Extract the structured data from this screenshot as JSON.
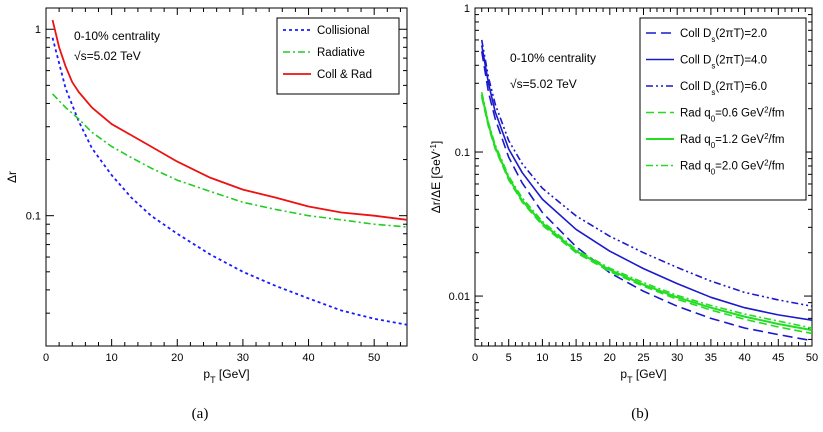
{
  "chart_data": [
    {
      "type": "line",
      "panel_label": "(a)",
      "xlabel_main": "p",
      "xlabel_sub": "T",
      "xlabel_rest": " [GeV]",
      "ylabel": "Δr",
      "xlim": [
        0,
        55
      ],
      "ylim": [
        0.02,
        1.3
      ],
      "yscale": "log",
      "xticks": [
        0,
        10,
        20,
        30,
        40,
        50
      ],
      "yticks": [
        {
          "v": 0.1,
          "label": "0.1"
        },
        {
          "v": 1,
          "label": "1"
        }
      ],
      "annotations": [
        "0-10% centrality",
        "√s=5.02 TeV"
      ],
      "legend_position": "top-right",
      "series": [
        {
          "name": "Collisional",
          "color": "#1a1aff",
          "dash": "3,3",
          "width": 1.8,
          "x": [
            1,
            3,
            5,
            7,
            10,
            13,
            16,
            20,
            25,
            30,
            35,
            40,
            45,
            50,
            55
          ],
          "y": [
            0.9,
            0.48,
            0.32,
            0.23,
            0.165,
            0.125,
            0.1,
            0.08,
            0.062,
            0.05,
            0.042,
            0.036,
            0.031,
            0.028,
            0.026
          ]
        },
        {
          "name": "Radiative",
          "color": "#22cc22",
          "dash": "7,3,2,3",
          "width": 1.6,
          "x": [
            1,
            3,
            5,
            7,
            10,
            13,
            16,
            20,
            25,
            30,
            35,
            40,
            45,
            50,
            55
          ],
          "y": [
            0.45,
            0.38,
            0.33,
            0.28,
            0.235,
            0.205,
            0.18,
            0.155,
            0.135,
            0.118,
            0.108,
            0.1,
            0.095,
            0.09,
            0.087
          ]
        },
        {
          "name": "Coll & Rad",
          "color": "#ee1111",
          "dash": "",
          "width": 1.8,
          "x": [
            1,
            2,
            3,
            4,
            5,
            7,
            10,
            13,
            16,
            20,
            25,
            30,
            35,
            40,
            45,
            50,
            55
          ],
          "y": [
            1.12,
            0.8,
            0.63,
            0.52,
            0.46,
            0.38,
            0.31,
            0.27,
            0.235,
            0.195,
            0.16,
            0.138,
            0.125,
            0.112,
            0.104,
            0.1,
            0.095
          ]
        }
      ]
    },
    {
      "type": "line",
      "panel_label": "(b)",
      "xlabel_main": "p",
      "xlabel_sub": "T",
      "xlabel_rest": " [GeV]",
      "ylabel_main": "Δr/ΔE [GeV",
      "ylabel_sup": "-1",
      "ylabel_end": "]",
      "xlim": [
        0,
        50
      ],
      "ylim": [
        0.0045,
        1.0
      ],
      "yscale": "log",
      "xticks": [
        0,
        5,
        10,
        15,
        20,
        25,
        30,
        35,
        40,
        45,
        50
      ],
      "yticks": [
        {
          "v": 0.01,
          "label": "0.01"
        },
        {
          "v": 0.1,
          "label": "0.1"
        },
        {
          "v": 1,
          "label": "1"
        }
      ],
      "annotations": [
        "0-10% centrality",
        "√s=5.02 TeV"
      ],
      "legend_position": "top-right",
      "series": [
        {
          "name_pre": "Coll  D",
          "name_sub": "s",
          "name_post": "(2πT)=2.0",
          "color": "#1a1acc",
          "dash": "10,5",
          "width": 1.6,
          "x": [
            1,
            2,
            3,
            5,
            7,
            10,
            15,
            20,
            25,
            30,
            35,
            40,
            45,
            50
          ],
          "y": [
            0.5,
            0.26,
            0.17,
            0.092,
            0.061,
            0.038,
            0.022,
            0.0145,
            0.0108,
            0.0085,
            0.007,
            0.006,
            0.0054,
            0.0049
          ]
        },
        {
          "name_pre": "Coll  D",
          "name_sub": "s",
          "name_post": "(2πT)=4.0",
          "color": "#1a1acc",
          "dash": "",
          "width": 1.6,
          "x": [
            1,
            2,
            3,
            5,
            7,
            10,
            15,
            20,
            25,
            30,
            35,
            40,
            45,
            50
          ],
          "y": [
            0.55,
            0.3,
            0.19,
            0.105,
            0.072,
            0.047,
            0.029,
            0.0205,
            0.0155,
            0.0122,
            0.0098,
            0.0083,
            0.0074,
            0.0068
          ]
        },
        {
          "name_pre": "Coll  D",
          "name_sub": "s",
          "name_post": "(2πT)=6.0",
          "color": "#1a1acc",
          "dash": "7,3,2,3,2,3",
          "width": 1.6,
          "x": [
            1,
            2,
            3,
            5,
            7,
            10,
            15,
            20,
            25,
            30,
            35,
            40,
            45,
            50
          ],
          "y": [
            0.6,
            0.33,
            0.215,
            0.12,
            0.083,
            0.056,
            0.036,
            0.026,
            0.02,
            0.0158,
            0.0127,
            0.0106,
            0.0094,
            0.0085
          ]
        },
        {
          "name_pre": "Rad q",
          "name_sub": "0",
          "name_post": "=0.6 GeV",
          "name_sup": "2",
          "name_end": "/fm",
          "color": "#22dd22",
          "dash": "8,4",
          "width": 1.6,
          "x": [
            1,
            2,
            3,
            5,
            7,
            10,
            15,
            20,
            25,
            30,
            35,
            40,
            45,
            50
          ],
          "y": [
            0.24,
            0.15,
            0.105,
            0.064,
            0.045,
            0.031,
            0.02,
            0.0148,
            0.0117,
            0.0095,
            0.008,
            0.0069,
            0.0061,
            0.0055
          ]
        },
        {
          "name_pre": "Rad q",
          "name_sub": "0",
          "name_post": "=1.2 GeV",
          "name_sup": "2",
          "name_end": "/fm",
          "color": "#22dd22",
          "dash": "",
          "width": 2.0,
          "x": [
            1,
            2,
            3,
            5,
            7,
            10,
            15,
            20,
            25,
            30,
            35,
            40,
            45,
            50
          ],
          "y": [
            0.25,
            0.155,
            0.108,
            0.066,
            0.046,
            0.032,
            0.0205,
            0.0152,
            0.012,
            0.0098,
            0.0083,
            0.0072,
            0.0064,
            0.0058
          ]
        },
        {
          "name_pre": "Rad q",
          "name_sub": "0",
          "name_post": "=2.0 GeV",
          "name_sup": "2",
          "name_end": "/fm",
          "color": "#22dd22",
          "dash": "7,3,2,3",
          "width": 1.6,
          "x": [
            1,
            2,
            3,
            5,
            7,
            10,
            15,
            20,
            25,
            30,
            35,
            40,
            45,
            50
          ],
          "y": [
            0.26,
            0.16,
            0.112,
            0.068,
            0.048,
            0.033,
            0.021,
            0.0156,
            0.0124,
            0.0101,
            0.0086,
            0.0075,
            0.0067,
            0.006
          ]
        }
      ]
    }
  ]
}
